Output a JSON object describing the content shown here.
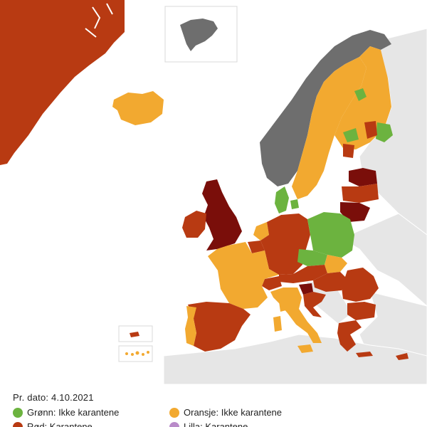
{
  "colors": {
    "sea": "#ffffff",
    "non_eu_land": "#e6e6e6",
    "border": "#ffffff",
    "norway_gray": "#6e6e6e",
    "green": "#6cb33f",
    "orange": "#f2a930",
    "red": "#b83a12",
    "darkred": "#7a0e0a",
    "purple": "#b98bc9",
    "inset_frame": "#d8d8d8"
  },
  "date_line": "Pr. dato: 4.10.2021",
  "legend": [
    {
      "key": "green",
      "label": "Grønn: Ikke karantene",
      "color": "#6cb33f"
    },
    {
      "key": "orange",
      "label": "Oransje: Ikke karantene",
      "color": "#f2a930"
    },
    {
      "key": "red",
      "label": "Rød: Karantene",
      "color": "#b83a12"
    },
    {
      "key": "purple",
      "label": "Lilla: Karantene",
      "color": "#b98bc9"
    }
  ],
  "regions": [
    {
      "name": "greenland",
      "status": "red"
    },
    {
      "name": "iceland",
      "status": "orange"
    },
    {
      "name": "norway",
      "status": "gray"
    },
    {
      "name": "sweden",
      "status": "orange"
    },
    {
      "name": "finland",
      "status": "orange"
    },
    {
      "name": "denmark",
      "status": "green"
    },
    {
      "name": "estonia",
      "status": "darkred"
    },
    {
      "name": "latvia",
      "status": "red"
    },
    {
      "name": "lithuania",
      "status": "darkred"
    },
    {
      "name": "united-kingdom",
      "status": "darkred"
    },
    {
      "name": "ireland",
      "status": "red"
    },
    {
      "name": "netherlands",
      "status": "orange"
    },
    {
      "name": "belgium",
      "status": "red"
    },
    {
      "name": "germany",
      "status": "red"
    },
    {
      "name": "poland",
      "status": "green"
    },
    {
      "name": "czechia",
      "status": "green"
    },
    {
      "name": "slovakia",
      "status": "orange"
    },
    {
      "name": "austria",
      "status": "red"
    },
    {
      "name": "switzerland",
      "status": "red"
    },
    {
      "name": "hungary",
      "status": "red"
    },
    {
      "name": "slovenia",
      "status": "darkred"
    },
    {
      "name": "croatia",
      "status": "red"
    },
    {
      "name": "romania",
      "status": "red"
    },
    {
      "name": "bulgaria",
      "status": "red"
    },
    {
      "name": "greece",
      "status": "red"
    },
    {
      "name": "italy",
      "status": "orange"
    },
    {
      "name": "france",
      "status": "orange"
    },
    {
      "name": "spain",
      "status": "red"
    },
    {
      "name": "portugal",
      "status": "orange"
    },
    {
      "name": "cyprus",
      "status": "red"
    },
    {
      "name": "svalbard",
      "status": "gray"
    },
    {
      "name": "madeira",
      "status": "red"
    },
    {
      "name": "canary-islands",
      "status": "orange"
    }
  ]
}
